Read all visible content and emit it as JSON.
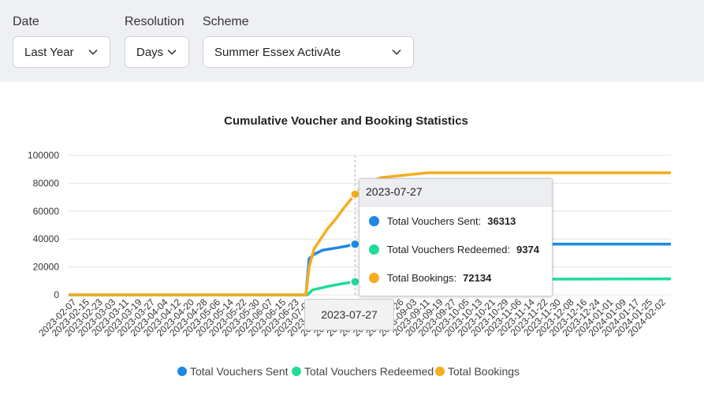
{
  "filters": {
    "date": {
      "label": "Date",
      "value": "Last Year"
    },
    "resolution": {
      "label": "Resolution",
      "value": "Days"
    },
    "scheme": {
      "label": "Scheme",
      "value": "Summer Essex ActivAte"
    }
  },
  "chart_data": {
    "type": "line",
    "title": "Cumulative Voucher and Booking Statistics",
    "ylim": [
      0,
      100000
    ],
    "yticks": [
      0,
      20000,
      40000,
      60000,
      80000,
      100000
    ],
    "date_range": [
      "2023-02-02",
      "2024-02-05"
    ],
    "xtick_labels": [
      "2023-02-07",
      "2023-02-15",
      "2023-02-23",
      "2023-03-03",
      "2023-03-11",
      "2023-03-19",
      "2023-03-27",
      "2023-04-04",
      "2023-04-12",
      "2023-04-20",
      "2023-04-28",
      "2023-05-06",
      "2023-05-14",
      "2023-05-22",
      "2023-05-30",
      "2023-06-07",
      "2023-06-15",
      "2023-06-23",
      "2023-07-01",
      "2023-07-09",
      "2023-07-17",
      "2023-07-25",
      "2023-08-02",
      "2023-08-10",
      "2023-08-18",
      "2023-08-26",
      "2023-09-03",
      "2023-09-11",
      "2023-09-19",
      "2023-09-27",
      "2023-10-05",
      "2023-10-13",
      "2023-10-21",
      "2023-10-29",
      "2023-11-06",
      "2023-11-14",
      "2023-11-22",
      "2023-11-30",
      "2023-12-08",
      "2023-12-16",
      "2023-12-24",
      "2024-01-01",
      "2024-01-09",
      "2024-01-17",
      "2024-01-25",
      "2024-02-02"
    ],
    "legend_position": "bottom",
    "series": [
      {
        "name": "Total Vouchers Sent",
        "color": "#1e88e5",
        "points": [
          [
            "2023-02-02",
            0
          ],
          [
            "2023-06-27",
            0
          ],
          [
            "2023-06-29",
            26000
          ],
          [
            "2023-07-02",
            29000
          ],
          [
            "2023-07-07",
            32000
          ],
          [
            "2023-07-15",
            33500
          ],
          [
            "2023-07-22",
            35000
          ],
          [
            "2023-07-27",
            36313
          ],
          [
            "2023-08-10",
            36400
          ],
          [
            "2024-02-05",
            36400
          ]
        ]
      },
      {
        "name": "Total Vouchers Redeemed",
        "color": "#1fdc97",
        "points": [
          [
            "2023-02-02",
            0
          ],
          [
            "2023-06-28",
            0
          ],
          [
            "2023-07-01",
            3500
          ],
          [
            "2023-07-10",
            6000
          ],
          [
            "2023-07-20",
            8200
          ],
          [
            "2023-07-27",
            9374
          ],
          [
            "2023-08-10",
            10500
          ],
          [
            "2023-09-01",
            11200
          ],
          [
            "2024-02-05",
            11400
          ]
        ]
      },
      {
        "name": "Total Bookings",
        "color": "#f5ad1f",
        "points": [
          [
            "2023-02-02",
            0
          ],
          [
            "2023-06-27",
            0
          ],
          [
            "2023-06-29",
            20000
          ],
          [
            "2023-07-02",
            33000
          ],
          [
            "2023-07-06",
            40000
          ],
          [
            "2023-07-10",
            47000
          ],
          [
            "2023-07-15",
            54000
          ],
          [
            "2023-07-20",
            62000
          ],
          [
            "2023-07-27",
            72134
          ],
          [
            "2023-08-03",
            80000
          ],
          [
            "2023-08-12",
            84000
          ],
          [
            "2023-09-01",
            86500
          ],
          [
            "2023-09-10",
            87500
          ],
          [
            "2024-02-05",
            87500
          ]
        ]
      }
    ],
    "tooltip": {
      "date": "2023-07-27",
      "rows": [
        {
          "label": "Total Vouchers Sent:",
          "value": "36313",
          "color": "#1e88e5"
        },
        {
          "label": "Total Vouchers Redeemed:",
          "value": "9374",
          "color": "#1fdc97"
        },
        {
          "label": "Total Bookings:",
          "value": "72134",
          "color": "#f5ad1f"
        }
      ]
    }
  }
}
